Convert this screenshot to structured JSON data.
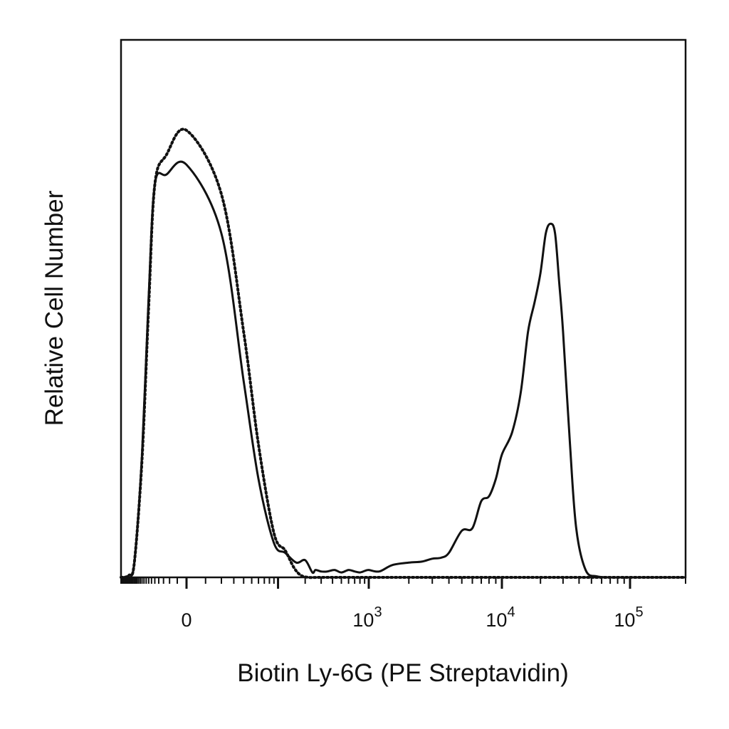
{
  "chart_data": {
    "type": "line",
    "title": "",
    "xlabel": "Biotin Ly-6G (PE Streptavidin)",
    "ylabel": "Relative Cell Number",
    "x_scale": "biexponential",
    "xlim": [
      -300,
      200000
    ],
    "ylim": [
      0,
      1
    ],
    "grid": false,
    "legend": "none",
    "ticks": [
      {
        "label": "0",
        "value": 0
      },
      {
        "label": "10",
        "exp": "3",
        "value": 1000
      },
      {
        "label": "10",
        "exp": "4",
        "value": 10000
      },
      {
        "label": "10",
        "exp": "5",
        "value": 100000
      }
    ],
    "series": [
      {
        "style": "solid",
        "color": "#111111",
        "x": [
          -300,
          -200,
          -150,
          -100,
          -70,
          -50,
          -25,
          0,
          20,
          40,
          60,
          90,
          120,
          160,
          200,
          240,
          260,
          300,
          350,
          420,
          500,
          600,
          700,
          800,
          900,
          1000,
          1200,
          1500,
          2000,
          2500,
          3000,
          3500,
          4000,
          5000,
          6000,
          7000,
          8000,
          9000,
          10000,
          12000,
          14000,
          16000,
          18000,
          20000,
          22000,
          24000,
          26000,
          28000,
          30000,
          34000,
          38000,
          45000,
          55000,
          70000,
          100000,
          200000
        ],
        "y": [
          0,
          0.004,
          0.03,
          0.25,
          0.57,
          0.8,
          0.82,
          0.84,
          0.7,
          0.4,
          0.2,
          0.07,
          0.05,
          0.03,
          0.035,
          0.01,
          0.015,
          0.012,
          0.012,
          0.015,
          0.01,
          0.015,
          0.012,
          0.01,
          0.013,
          0.015,
          0.012,
          0.025,
          0.03,
          0.032,
          0.038,
          0.04,
          0.05,
          0.095,
          0.1,
          0.155,
          0.165,
          0.2,
          0.25,
          0.295,
          0.375,
          0.5,
          0.56,
          0.62,
          0.7,
          0.72,
          0.7,
          0.6,
          0.5,
          0.27,
          0.1,
          0.015,
          0.002,
          0,
          0,
          0
        ]
      },
      {
        "style": "dotted",
        "color": "#111111",
        "x": [
          -300,
          -200,
          -150,
          -100,
          -70,
          -50,
          -25,
          0,
          20,
          40,
          60,
          90,
          120,
          150,
          180,
          220,
          300,
          1000,
          10000,
          200000
        ],
        "y": [
          0,
          0.004,
          0.03,
          0.24,
          0.55,
          0.8,
          0.86,
          0.91,
          0.78,
          0.5,
          0.27,
          0.09,
          0.055,
          0.02,
          0.004,
          0,
          0,
          0,
          0,
          0
        ]
      }
    ]
  }
}
